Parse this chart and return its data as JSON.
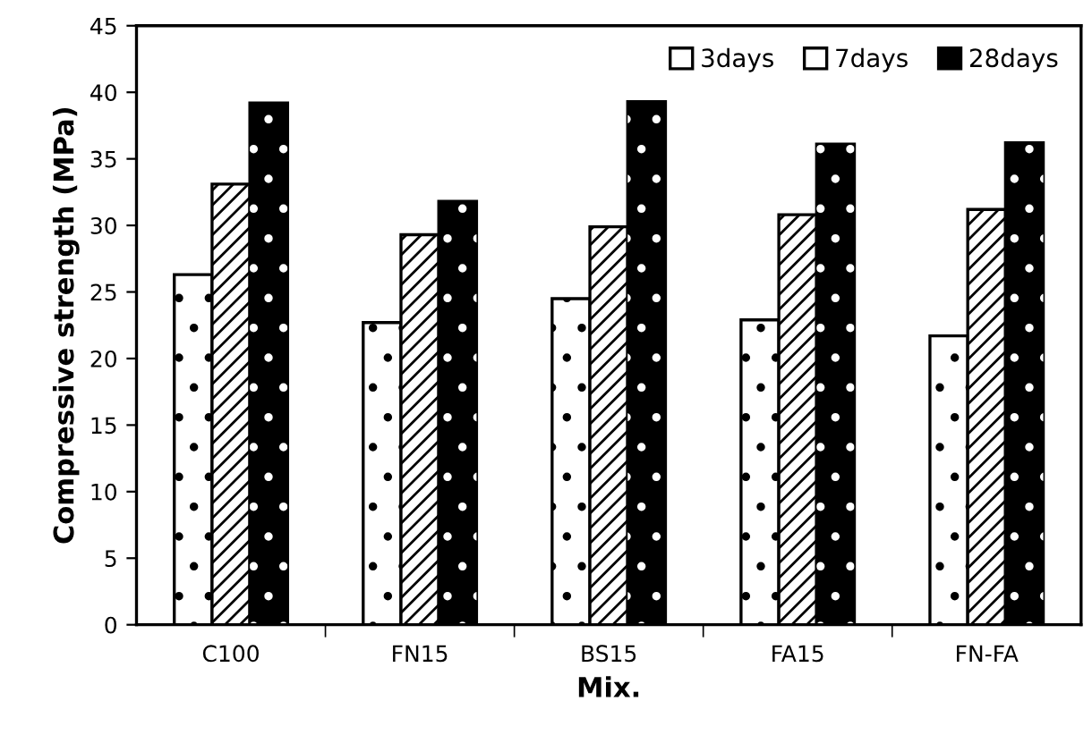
{
  "chart_data": {
    "type": "bar",
    "xlabel": "Mix.",
    "ylabel": "Compressive strength (MPa)",
    "categories": [
      "C100",
      "FN15",
      "BS15",
      "FA15",
      "FN-FA"
    ],
    "series": [
      {
        "name": "3days",
        "color": "#ffffff",
        "values": [
          26.3,
          22.7,
          24.5,
          22.9,
          21.7
        ]
      },
      {
        "name": "7days",
        "color": "#ffffff",
        "values": [
          33.1,
          29.3,
          29.9,
          30.8,
          31.2
        ]
      },
      {
        "name": "28days",
        "color": "#000000",
        "values": [
          39.2,
          31.8,
          39.3,
          36.1,
          36.2
        ]
      }
    ],
    "ylim": [
      0,
      45
    ],
    "yticks": [
      0,
      5,
      10,
      15,
      20,
      25,
      30,
      35,
      40,
      45
    ],
    "grid": false,
    "legend": "top right"
  }
}
